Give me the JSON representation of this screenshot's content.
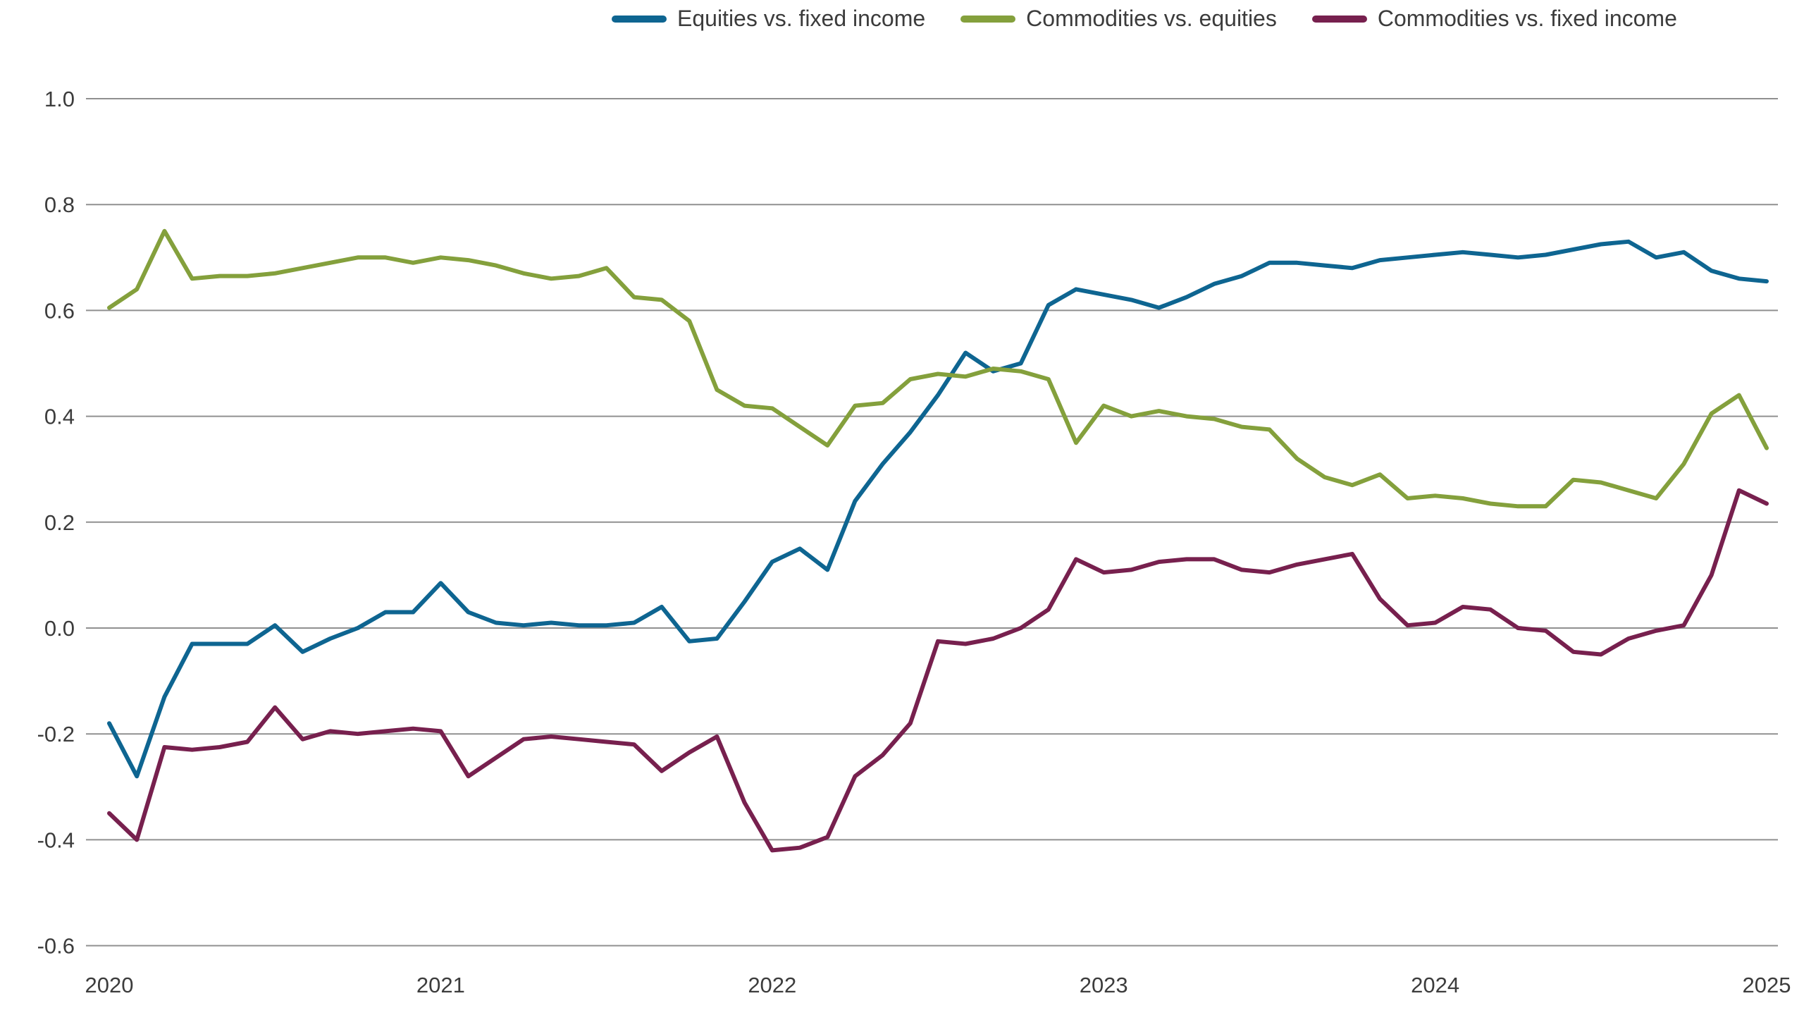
{
  "chart_data": {
    "type": "line",
    "title": "",
    "xlabel": "",
    "ylabel": "",
    "x_unit": "month",
    "x_start": "2020-01",
    "x_end": "2025-01",
    "x_tick_labels": [
      "2020",
      "2021",
      "2022",
      "2023",
      "2024",
      "2025"
    ],
    "y_ticks": [
      1.0,
      0.8,
      0.6,
      0.4,
      0.2,
      0.0,
      -0.2,
      -0.4,
      -0.6
    ],
    "ylim": [
      -0.6,
      1.0
    ],
    "grid": "horizontal",
    "legend_position": "top",
    "style": {
      "grid_color": "#909090",
      "text_color": "#3c3c3c",
      "background": "#ffffff",
      "line_width": 6
    },
    "series": [
      {
        "id": "equities-vs-fixed-income",
        "name": "Equities vs. fixed income",
        "color": "#0e6591",
        "values": [
          -0.18,
          -0.28,
          -0.13,
          -0.03,
          -0.03,
          -0.03,
          0.005,
          -0.045,
          -0.02,
          0.0,
          0.03,
          0.03,
          0.085,
          0.03,
          0.01,
          0.005,
          0.01,
          0.005,
          0.005,
          0.01,
          0.04,
          -0.025,
          -0.02,
          0.05,
          0.125,
          0.15,
          0.11,
          0.24,
          0.31,
          0.37,
          0.44,
          0.52,
          0.485,
          0.5,
          0.61,
          0.64,
          0.63,
          0.62,
          0.605,
          0.625,
          0.65,
          0.665,
          0.69,
          0.69,
          0.685,
          0.68,
          0.695,
          0.7,
          0.705,
          0.71,
          0.705,
          0.7,
          0.705,
          0.715,
          0.725,
          0.73,
          0.7,
          0.71,
          0.675,
          0.66,
          0.655
        ]
      },
      {
        "id": "commodities-vs-equities",
        "name": "Commodities vs. equities",
        "color": "#84a03c",
        "values": [
          0.605,
          0.64,
          0.75,
          0.66,
          0.665,
          0.665,
          0.67,
          0.68,
          0.69,
          0.7,
          0.7,
          0.69,
          0.7,
          0.695,
          0.685,
          0.67,
          0.66,
          0.665,
          0.68,
          0.625,
          0.62,
          0.58,
          0.45,
          0.42,
          0.415,
          0.38,
          0.345,
          0.42,
          0.425,
          0.47,
          0.48,
          0.475,
          0.49,
          0.485,
          0.47,
          0.35,
          0.42,
          0.4,
          0.41,
          0.4,
          0.395,
          0.38,
          0.375,
          0.32,
          0.285,
          0.27,
          0.29,
          0.245,
          0.25,
          0.245,
          0.235,
          0.23,
          0.23,
          0.28,
          0.275,
          0.26,
          0.245,
          0.31,
          0.405,
          0.44,
          0.34
        ]
      },
      {
        "id": "commodities-vs-fixed-income",
        "name": "Commodities vs. fixed income",
        "color": "#77204e",
        "values": [
          -0.35,
          -0.4,
          -0.225,
          -0.23,
          -0.225,
          -0.215,
          -0.15,
          -0.21,
          -0.195,
          -0.2,
          -0.195,
          -0.19,
          -0.195,
          -0.28,
          -0.245,
          -0.21,
          -0.205,
          -0.21,
          -0.215,
          -0.22,
          -0.27,
          -0.235,
          -0.205,
          -0.33,
          -0.42,
          -0.415,
          -0.395,
          -0.28,
          -0.24,
          -0.18,
          -0.025,
          -0.03,
          -0.02,
          0.0,
          0.035,
          0.13,
          0.105,
          0.11,
          0.125,
          0.13,
          0.13,
          0.11,
          0.105,
          0.12,
          0.13,
          0.14,
          0.055,
          0.005,
          0.01,
          0.04,
          0.035,
          0.0,
          -0.005,
          -0.045,
          -0.05,
          -0.02,
          -0.005,
          0.005,
          0.1,
          0.26,
          0.235
        ]
      }
    ]
  }
}
